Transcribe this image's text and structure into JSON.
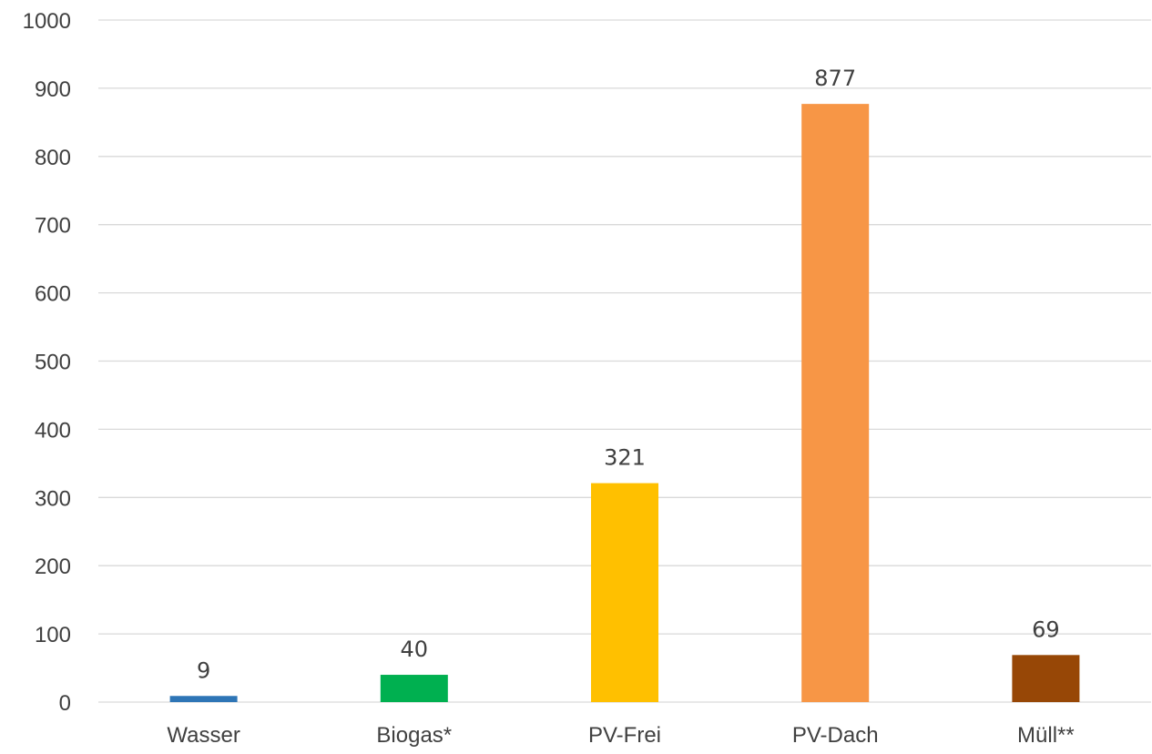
{
  "chart_data": {
    "type": "bar",
    "title": "",
    "xlabel": "",
    "ylabel": "",
    "categories": [
      "Wasser",
      "Biogas*",
      "PV-Frei",
      "PV-Dach",
      "Müll**"
    ],
    "values": [
      9,
      40,
      321,
      877,
      69
    ],
    "data_labels": [
      "9",
      "40",
      "321",
      "877",
      "69"
    ],
    "colors": [
      "#2E75B6",
      "#00B050",
      "#FFC000",
      "#F79646",
      "#974706"
    ],
    "ylim": [
      0,
      1000
    ],
    "yticks": [
      0,
      100,
      200,
      300,
      400,
      500,
      600,
      700,
      800,
      900,
      1000
    ],
    "ytick_labels": [
      "0",
      "100",
      "200",
      "300",
      "400",
      "500",
      "600",
      "700",
      "800",
      "900",
      "1000"
    ],
    "grid": true,
    "legend": "none",
    "gridline_color": "#D9D9D9",
    "text_color": "#404040"
  }
}
